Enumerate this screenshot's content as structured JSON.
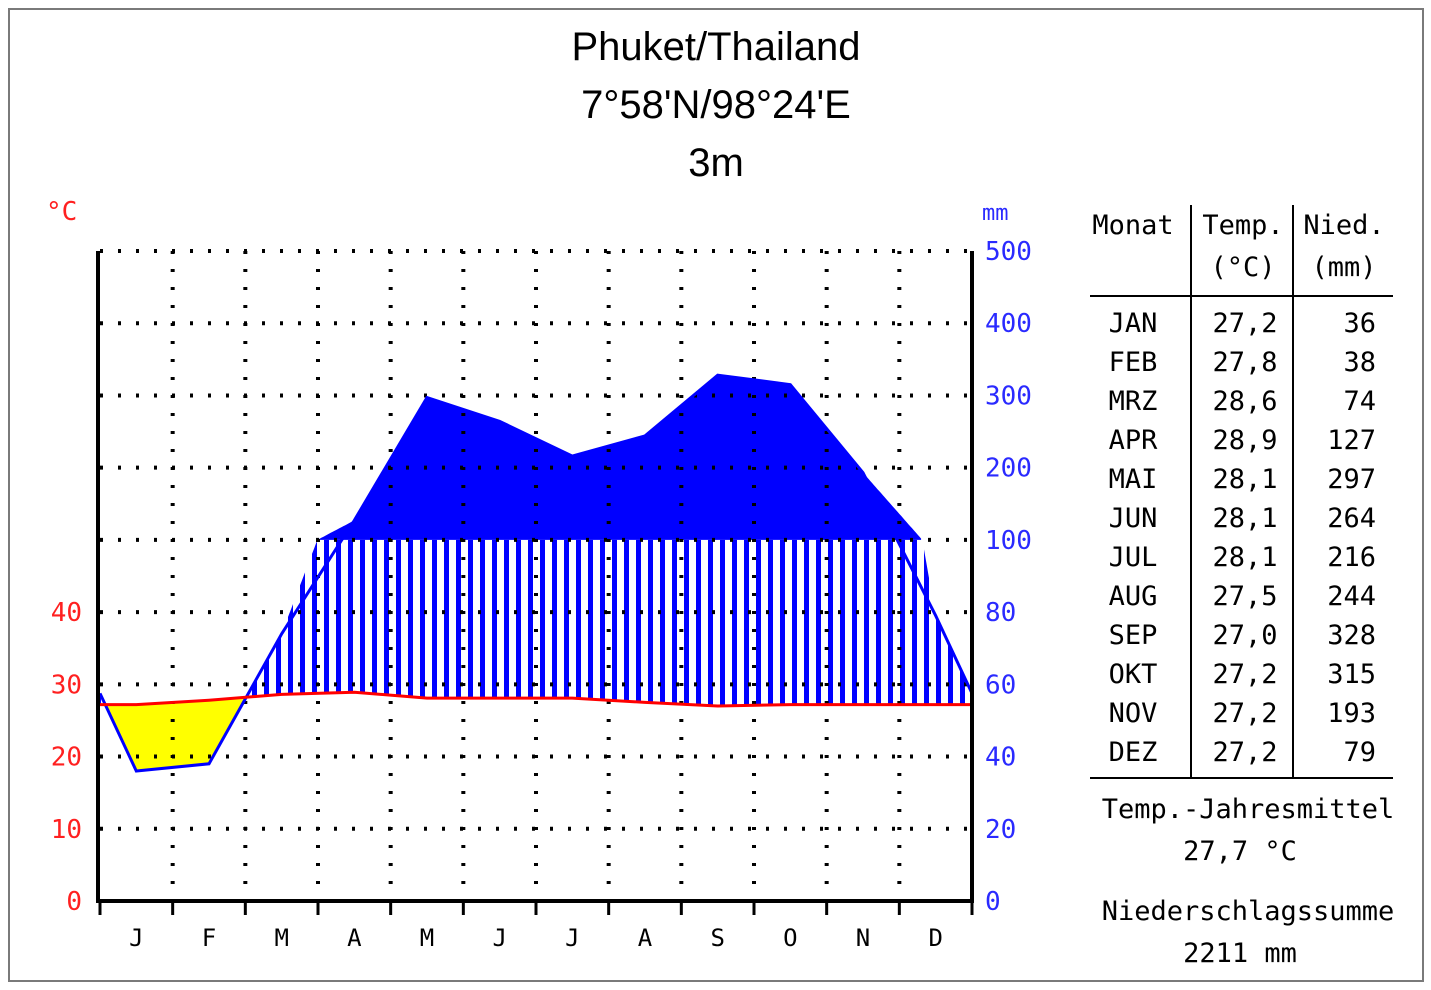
{
  "chart_data": {
    "type": "climate-diagram",
    "title": [
      "Phuket/Thailand",
      "7°58'N/98°24'E",
      "3m"
    ],
    "temp_unit": "°C",
    "precip_unit": "mm",
    "categories": [
      "J",
      "F",
      "M",
      "A",
      "M",
      "J",
      "J",
      "A",
      "S",
      "O",
      "N",
      "D"
    ],
    "temp_ticks": [
      "0",
      "10",
      "20",
      "30",
      "40"
    ],
    "precip_ticks": [
      "0",
      "20",
      "40",
      "60",
      "80",
      "100",
      "200",
      "300",
      "400",
      "500"
    ],
    "temp_range": [
      0,
      50
    ],
    "precip_range": [
      0,
      500
    ],
    "series": [
      {
        "name": "Temp.",
        "values": [
          27.2,
          27.8,
          28.6,
          28.9,
          28.1,
          28.1,
          28.1,
          27.5,
          27.0,
          27.2,
          27.2,
          27.2
        ]
      },
      {
        "name": "Nied.",
        "values": [
          36,
          38,
          74,
          127,
          297,
          264,
          216,
          244,
          328,
          315,
          193,
          79
        ]
      }
    ],
    "colors": {
      "temp": "#ff0000",
      "precip": "#0000ff",
      "arid": "#ffff00",
      "grid": "#000000"
    }
  },
  "table": {
    "headers": [
      [
        "Monat"
      ],
      [
        "Temp.",
        "(°C)"
      ],
      [
        "Nied.",
        "(mm)"
      ]
    ],
    "rows": [
      {
        "month": "JAN",
        "temp": "27,2",
        "precip": "36"
      },
      {
        "month": "FEB",
        "temp": "27,8",
        "precip": "38"
      },
      {
        "month": "MRZ",
        "temp": "28,6",
        "precip": "74"
      },
      {
        "month": "APR",
        "temp": "28,9",
        "precip": "127"
      },
      {
        "month": "MAI",
        "temp": "28,1",
        "precip": "297"
      },
      {
        "month": "JUN",
        "temp": "28,1",
        "precip": "264"
      },
      {
        "month": "JUL",
        "temp": "28,1",
        "precip": "216"
      },
      {
        "month": "AUG",
        "temp": "27,5",
        "precip": "244"
      },
      {
        "month": "SEP",
        "temp": "27,0",
        "precip": "328"
      },
      {
        "month": "OKT",
        "temp": "27,2",
        "precip": "315"
      },
      {
        "month": "NOV",
        "temp": "27,2",
        "precip": "193"
      },
      {
        "month": "DEZ",
        "temp": "27,2",
        "precip": "79"
      }
    ],
    "summary_temp_label": "Temp.-Jahresmittel",
    "summary_temp_value": "27,7 °C",
    "summary_precip_label": "Niederschlagssumme",
    "summary_precip_value": "2211 mm"
  }
}
